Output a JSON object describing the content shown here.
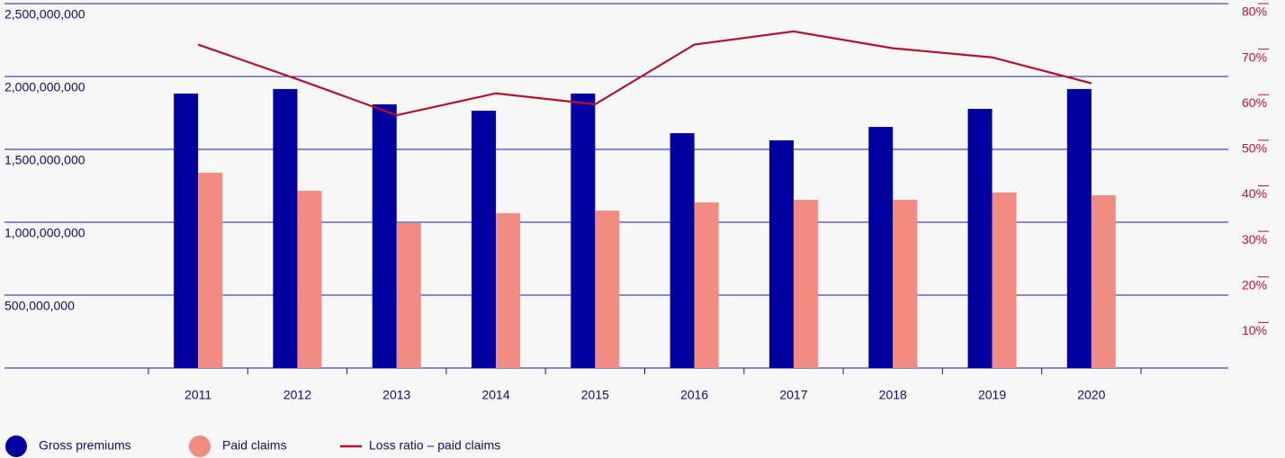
{
  "chart_data": {
    "type": "bar",
    "categories": [
      "2011",
      "2012",
      "2013",
      "2014",
      "2015",
      "2016",
      "2017",
      "2018",
      "2019",
      "2020"
    ],
    "series": [
      {
        "name": "Gross premiums",
        "color": "#0000a0",
        "values": [
          1883000000,
          1914000000,
          1809000000,
          1765000000,
          1883000000,
          1611000000,
          1562000000,
          1654000000,
          1778000000,
          1914000000
        ]
      },
      {
        "name": "Paid claims",
        "color": "#f28b82",
        "values": [
          1340000000,
          1216000000,
          994000000,
          1062000000,
          1080000000,
          1136000000,
          1154000000,
          1154000000,
          1204000000,
          1185000000
        ]
      },
      {
        "name": "Loss ratio – paid claims",
        "type": "line",
        "axis": "y2",
        "color": "#b5102e",
        "values": [
          71,
          63.4,
          55.5,
          60.3,
          57.9,
          71,
          73.9,
          70.2,
          68.2,
          62.5
        ]
      }
    ],
    "ylim": [
      0,
      2500000000
    ],
    "yticks": [
      {
        "value": 500000000,
        "label": "500,000,000"
      },
      {
        "value": 1000000000,
        "label": "1,000,000,000"
      },
      {
        "value": 1500000000,
        "label": "1,500,000,000"
      },
      {
        "value": 2000000000,
        "label": "2,000,000,000"
      },
      {
        "value": 2500000000,
        "label": "2,500,000,000"
      }
    ],
    "y2lim": [
      0,
      80
    ],
    "y2ticks": [
      {
        "value": 10,
        "label": "10%"
      },
      {
        "value": 20,
        "label": "20%"
      },
      {
        "value": 30,
        "label": "30%"
      },
      {
        "value": 40,
        "label": "40%"
      },
      {
        "value": 50,
        "label": "50%"
      },
      {
        "value": 60,
        "label": "60%"
      },
      {
        "value": 70,
        "label": "70%"
      },
      {
        "value": 80,
        "label": "80%"
      }
    ],
    "grid": true,
    "legend": "bottom-left"
  }
}
